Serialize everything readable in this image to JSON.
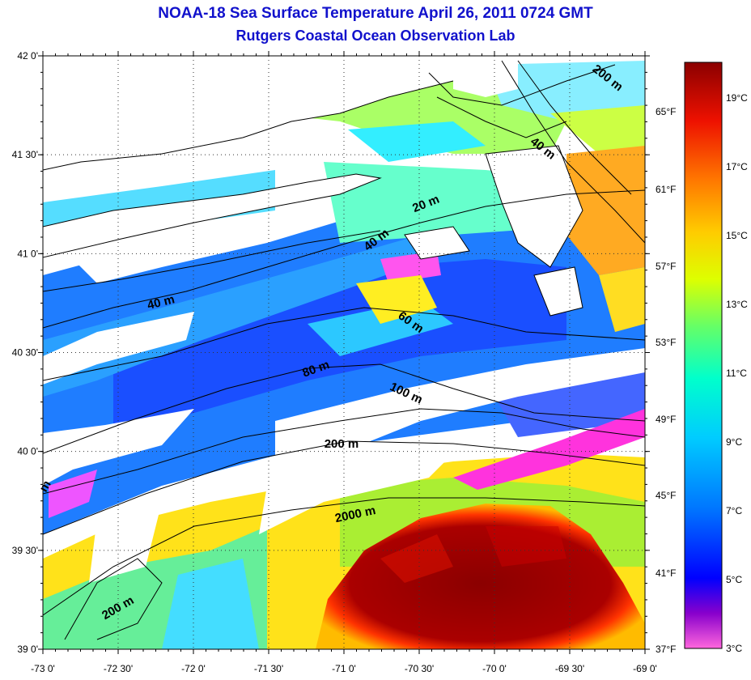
{
  "header": {
    "title": "NOAA-18 Sea Surface Temperature April 26, 2011 0724 GMT",
    "subtitle": "Rutgers Coastal Ocean Observation Lab"
  },
  "map": {
    "lon_labels": [
      "-73 0'",
      "-72 30'",
      "-72 0'",
      "-71 30'",
      "-71 0'",
      "-70 30'",
      "-70 0'",
      "-69 30'",
      "-69 0'"
    ],
    "lat_labels": [
      "42 0'",
      "41 30'",
      "41 0'",
      "40 30'",
      "40 0'",
      "39 30'",
      "39 0'"
    ],
    "fahrenheit_labels": [
      "65°F",
      "61°F",
      "57°F",
      "53°F",
      "49°F",
      "45°F",
      "41°F",
      "37°F"
    ],
    "depth_labels": [
      "200 m",
      "40 m",
      "20 m",
      "40 m",
      "40 m",
      "60 m",
      "80 m",
      "100 m",
      "200 m",
      "2000 m",
      "200 m",
      "m"
    ],
    "lon_range": [
      -73,
      -69
    ],
    "lat_range": [
      39,
      42
    ],
    "grid": true
  },
  "colorbar": {
    "labels": [
      "19°C",
      "17°C",
      "15°C",
      "13°C",
      "11°C",
      "9°C",
      "7°C",
      "5°C",
      "3°C"
    ],
    "range_c": [
      3,
      20
    ],
    "colors": [
      "#ff66dd",
      "#8800cc",
      "#0000ff",
      "#0077ff",
      "#00ccff",
      "#00ffcc",
      "#66ff66",
      "#ddff00",
      "#ffcc00",
      "#ff7700",
      "#ee1100",
      "#8b0000"
    ]
  }
}
